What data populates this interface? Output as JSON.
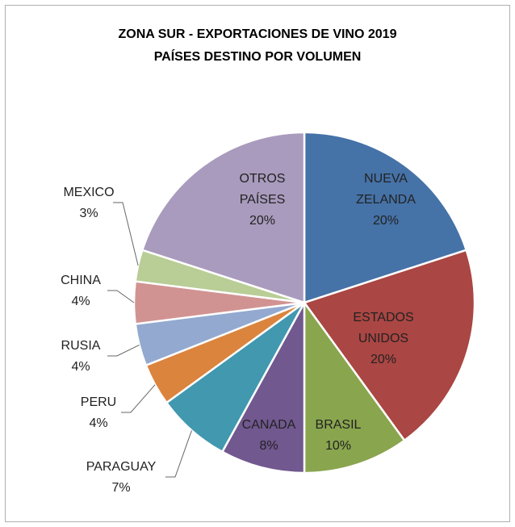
{
  "chart_data": {
    "type": "pie",
    "title": "ZONA SUR - EXPORTACIONES DE VINO 2019",
    "subtitle": "PAÍSES DESTINO POR VOLUMEN",
    "categories": [
      "NUEVA ZELANDA",
      "ESTADOS UNIDOS",
      "BRASIL",
      "CANADA",
      "PARAGUAY",
      "PERU",
      "RUSIA",
      "CHINA",
      "MEXICO",
      "OTROS PAÍSES"
    ],
    "values": [
      20,
      20,
      10,
      8,
      7,
      4,
      4,
      4,
      3,
      20
    ],
    "value_labels": [
      "20%",
      "20%",
      "10%",
      "8%",
      "7%",
      "4%",
      "4%",
      "4%",
      "3%",
      "20%"
    ],
    "colors": [
      "#4572a7",
      "#aa4643",
      "#89a54e",
      "#71588f",
      "#4198af",
      "#db843d",
      "#93a9cf",
      "#d19392",
      "#b9cd96",
      "#a99bbd"
    ]
  }
}
